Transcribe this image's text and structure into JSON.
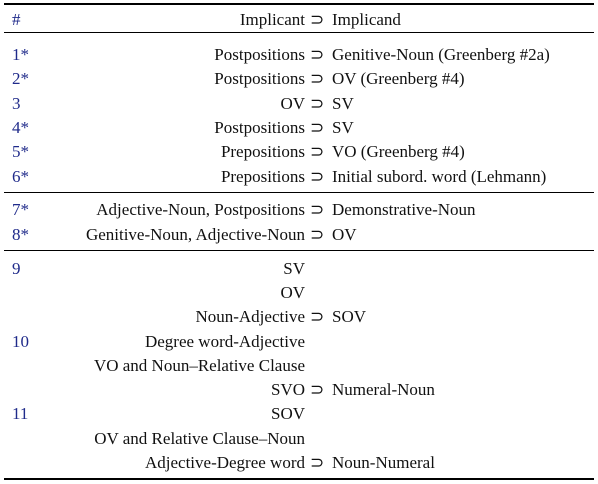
{
  "header": {
    "num": "#",
    "implicant": "Implicant",
    "symbol": "⊃",
    "implicand": "Implicand"
  },
  "groups": [
    {
      "rows": [
        {
          "num": "1*",
          "implicant": "Postpositions",
          "symbol": "⊃",
          "implicand": "Genitive-Noun (Greenberg #2a)"
        },
        {
          "num": "2*",
          "implicant": "Postpositions",
          "symbol": "⊃",
          "implicand": "OV (Greenberg #4)"
        },
        {
          "num": "3",
          "implicant": "OV",
          "symbol": "⊃",
          "implicand": "SV"
        },
        {
          "num": "4*",
          "implicant": "Postpositions",
          "symbol": "⊃",
          "implicand": "SV"
        },
        {
          "num": "5*",
          "implicant": "Prepositions",
          "symbol": "⊃",
          "implicand": "VO (Greenberg #4)"
        },
        {
          "num": "6*",
          "implicant": "Prepositions",
          "symbol": "⊃",
          "implicand": "Initial subord. word (Lehmann)"
        }
      ]
    },
    {
      "rows": [
        {
          "num": "7*",
          "implicant": "Adjective-Noun, Postpositions",
          "symbol": "⊃",
          "implicand": "Demonstrative-Noun"
        },
        {
          "num": "8*",
          "implicant": "Genitive-Noun, Adjective-Noun",
          "symbol": "⊃",
          "implicand": "OV"
        }
      ]
    },
    {
      "rows": [
        {
          "num": "9",
          "implicant": "SV"
        },
        {
          "implicant": "OV"
        },
        {
          "implicant": "Noun-Adjective",
          "symbol": "⊃",
          "implicand": "SOV"
        },
        {
          "num": "10",
          "implicant": "Degree word-Adjective"
        },
        {
          "implicant": "VO and Noun–Relative Clause"
        },
        {
          "implicant": "SVO",
          "symbol": "⊃",
          "implicand": "Numeral-Noun"
        },
        {
          "num": "11",
          "implicant": "SOV"
        },
        {
          "implicant": "OV and Relative Clause–Noun"
        },
        {
          "implicant": "Adjective-Degree word",
          "symbol": "⊃",
          "implicand": "Noun-Numeral"
        }
      ]
    }
  ]
}
